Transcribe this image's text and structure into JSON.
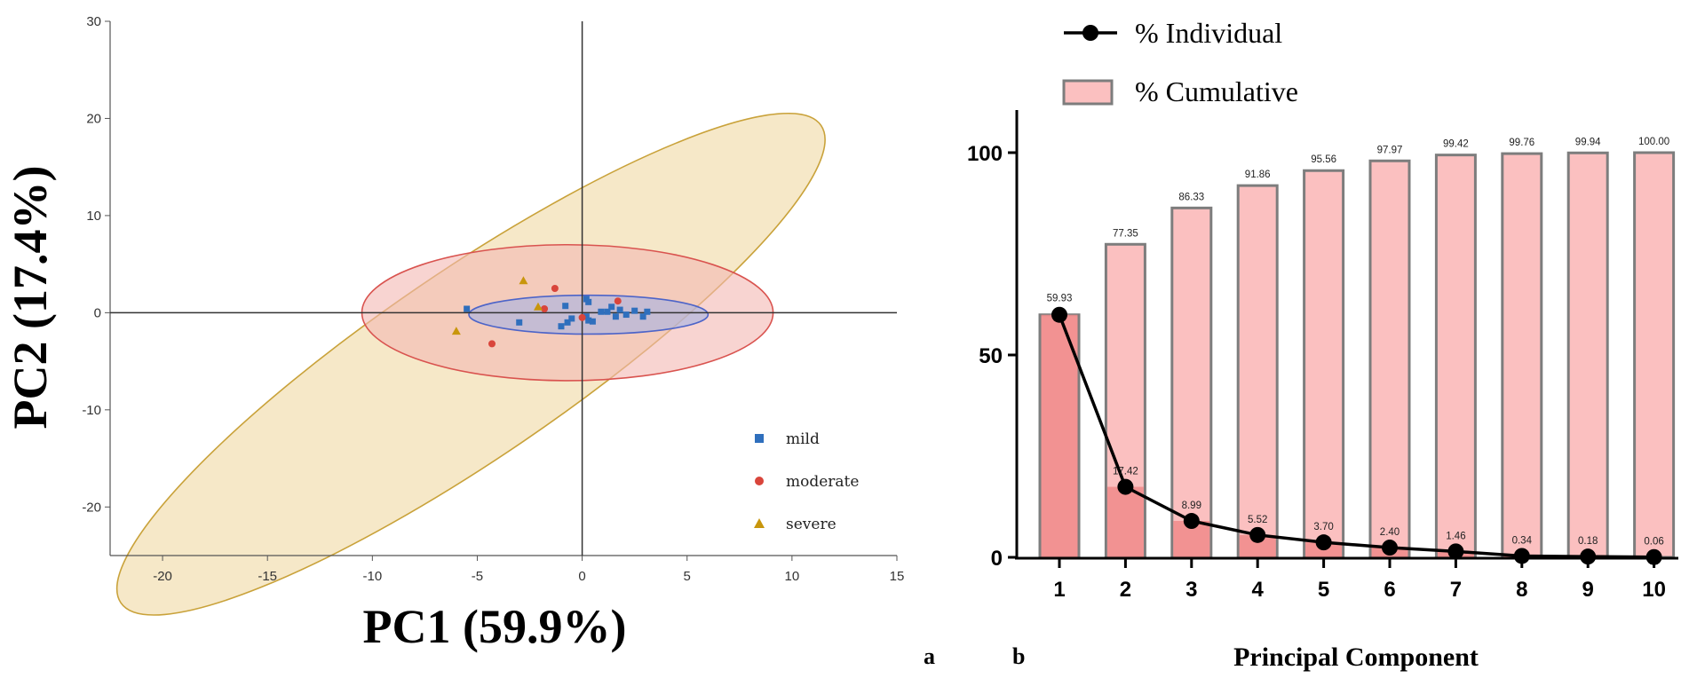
{
  "chart_data": [
    {
      "type": "scatter",
      "id": "a",
      "panel_label": "a",
      "xlabel": "PC1 (59.9%)",
      "ylabel": "PC2 (17.4%)",
      "xlim": [
        -22.5,
        15
      ],
      "ylim": [
        -25,
        30
      ],
      "xticks": [
        -20,
        -15,
        -10,
        -5,
        0,
        5,
        10,
        15
      ],
      "yticks": [
        -20,
        -10,
        0,
        10,
        20,
        30
      ],
      "xtick_labels": [
        "-20",
        "-15",
        "-10",
        "-5",
        "0",
        "5",
        "10",
        "15"
      ],
      "ytick_labels": [
        "-20",
        "-10",
        "0",
        "10",
        "20",
        "30"
      ],
      "series": [
        {
          "name": "mild",
          "color": "#2f6fbd",
          "marker": "square",
          "points": [
            [
              -5.5,
              0.4
            ],
            [
              -3,
              -1
            ],
            [
              -0.8,
              0.7
            ],
            [
              -0.5,
              -0.6
            ],
            [
              -1,
              -1.4
            ],
            [
              -0.7,
              -1
            ],
            [
              0.2,
              -0.4
            ],
            [
              0.3,
              -0.8
            ],
            [
              0.5,
              -0.9
            ],
            [
              0.2,
              1.4
            ],
            [
              0.3,
              1.1
            ],
            [
              0.9,
              0.1
            ],
            [
              1.2,
              0.1
            ],
            [
              1.4,
              0.6
            ],
            [
              1.6,
              -0.4
            ],
            [
              1.8,
              0.3
            ],
            [
              2.1,
              -0.2
            ],
            [
              2.5,
              0.2
            ],
            [
              2.9,
              -0.4
            ],
            [
              3.1,
              0.1
            ]
          ]
        },
        {
          "name": "moderate",
          "color": "#d9453b",
          "marker": "circle",
          "points": [
            [
              -4.3,
              -3.2
            ],
            [
              -1.3,
              2.5
            ],
            [
              -1.8,
              0.4
            ],
            [
              1.7,
              1.2
            ],
            [
              0,
              -0.5
            ]
          ]
        },
        {
          "name": "severe",
          "color": "#c8960c",
          "marker": "triangle",
          "points": [
            [
              -6,
              -1.9
            ],
            [
              -2.8,
              3.3
            ],
            [
              -2.1,
              0.6
            ]
          ]
        }
      ],
      "ellipses": [
        {
          "series": "severe",
          "cx": -5.3,
          "cy": -5.3,
          "rx": 20.2,
          "ry": 9.6,
          "angle_deg": 34.3,
          "fill": "#f0d9a4",
          "stroke": "#c9a23a"
        },
        {
          "series": "moderate",
          "cx": -0.7,
          "cy": 0.0,
          "rx": 9.8,
          "ry": 7.0,
          "angle_deg": 0,
          "fill": "#f3b8b2",
          "stroke": "#d9534f"
        },
        {
          "series": "mild",
          "cx": 0.3,
          "cy": -0.2,
          "rx": 5.7,
          "ry": 2.0,
          "angle_deg": 0,
          "fill": "#a5b3e3",
          "stroke": "#4d64c8"
        }
      ],
      "legend": {
        "position": "bottom-right",
        "items": [
          "mild",
          "moderate",
          "severe"
        ]
      }
    },
    {
      "type": "bar",
      "id": "b",
      "panel_label": "b",
      "xlabel": "Principal Component",
      "ylabel": "",
      "ylim": [
        0,
        110
      ],
      "yticks": [
        0,
        50,
        100
      ],
      "ytick_labels": [
        "0",
        "50",
        "100"
      ],
      "categories": [
        "1",
        "2",
        "3",
        "4",
        "5",
        "6",
        "7",
        "8",
        "9",
        "10"
      ],
      "series": [
        {
          "name": "% Cumulative",
          "kind": "bar",
          "color": "#fbc0c0",
          "stroke": "#7d7d7d",
          "values": [
            59.93,
            77.35,
            86.33,
            91.86,
            95.56,
            97.97,
            99.42,
            99.76,
            99.94,
            100.0
          ],
          "labels": [
            "59.93",
            "77.35",
            "86.33",
            "91.86",
            "95.56",
            "97.97",
            "99.42",
            "99.76",
            "99.94",
            "100.00"
          ]
        },
        {
          "name": "% Individual",
          "kind": "line",
          "color": "#000000",
          "values": [
            59.93,
            17.42,
            8.99,
            5.52,
            3.7,
            2.4,
            1.46,
            0.34,
            0.18,
            0.06
          ],
          "labels": [
            "59.93",
            "17.42",
            "8.99",
            "5.52",
            "3.70",
            "2.40",
            "1.46",
            "0.34",
            "0.18",
            "0.06"
          ]
        }
      ],
      "legend": {
        "position": "top-left",
        "items": [
          "% Individual",
          "% Cumulative"
        ]
      }
    }
  ]
}
